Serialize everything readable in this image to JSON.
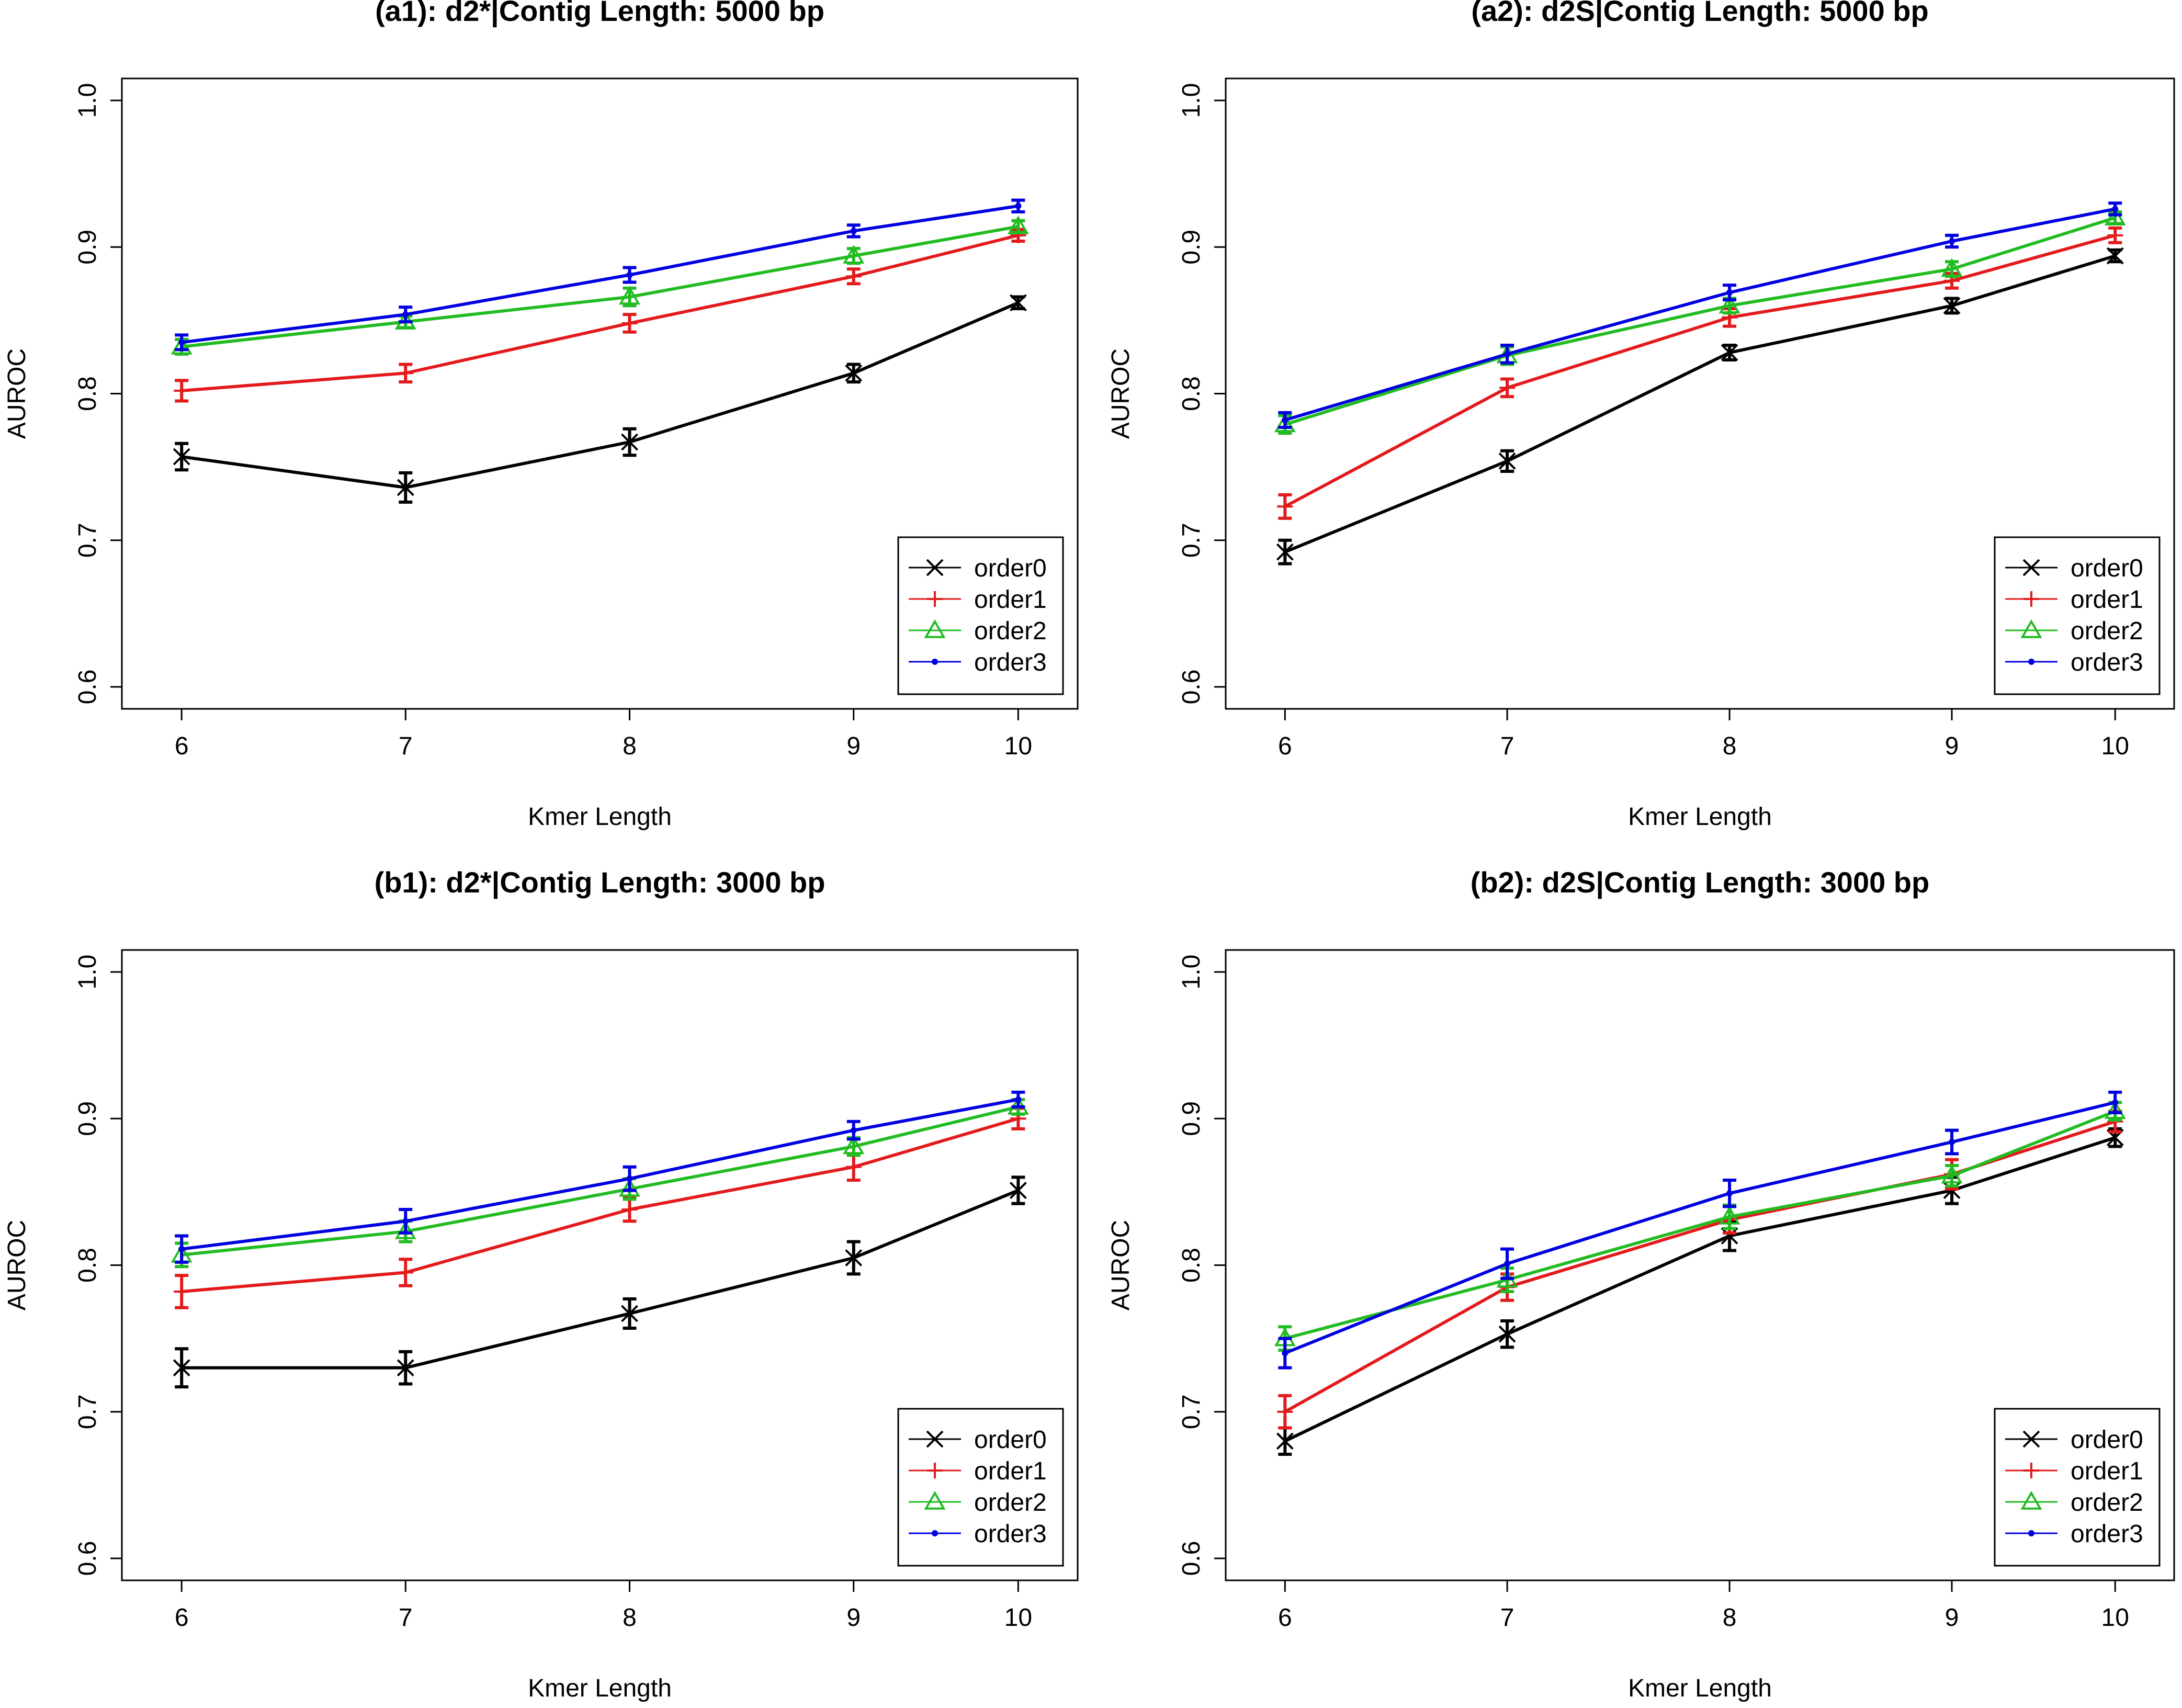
{
  "chart_data": [
    {
      "id": "a1",
      "type": "line",
      "title": "(a1): d2*|Contig Length: 5000 bp",
      "xlabel": "Kmer Length",
      "ylabel": "AUROC",
      "x": [
        6,
        7,
        8,
        9,
        10
      ],
      "xticks": [
        "6",
        "7",
        "8",
        "9",
        "10"
      ],
      "yticks": [
        "0.6",
        "0.7",
        "0.8",
        "0.9",
        "1.0"
      ],
      "ylim": [
        0.585,
        1.015
      ],
      "legend_position": "bottom-right",
      "series": [
        {
          "name": "order0",
          "color": "#000000",
          "marker": "x",
          "values": [
            0.757,
            0.736,
            0.767,
            0.814,
            0.862
          ],
          "errors": [
            0.009,
            0.01,
            0.009,
            0.006,
            0.004
          ]
        },
        {
          "name": "order1",
          "color": "#e31a1c",
          "marker": "plus",
          "values": [
            0.802,
            0.814,
            0.848,
            0.88,
            0.908
          ],
          "errors": [
            0.007,
            0.006,
            0.006,
            0.005,
            0.004
          ]
        },
        {
          "name": "order2",
          "color": "#22bb22",
          "marker": "triangle",
          "values": [
            0.832,
            0.849,
            0.866,
            0.894,
            0.914
          ],
          "errors": [
            0.005,
            0.004,
            0.006,
            0.005,
            0.004
          ]
        },
        {
          "name": "order3",
          "color": "#0000e0",
          "marker": "dot",
          "values": [
            0.835,
            0.854,
            0.881,
            0.911,
            0.928
          ],
          "errors": [
            0.005,
            0.005,
            0.005,
            0.004,
            0.004
          ]
        }
      ]
    },
    {
      "id": "a2",
      "type": "line",
      "title": "(a2): d2S|Contig Length: 5000 bp",
      "xlabel": "Kmer Length",
      "ylabel": "AUROC",
      "x": [
        6,
        7,
        8,
        9,
        10
      ],
      "xticks": [
        "6",
        "7",
        "8",
        "9",
        "10"
      ],
      "yticks": [
        "0.6",
        "0.7",
        "0.8",
        "0.9",
        "1.0"
      ],
      "ylim": [
        0.585,
        1.015
      ],
      "legend_position": "bottom-right",
      "series": [
        {
          "name": "order0",
          "color": "#000000",
          "marker": "x",
          "values": [
            0.692,
            0.754,
            0.828,
            0.86,
            0.894
          ],
          "errors": [
            0.008,
            0.007,
            0.005,
            0.005,
            0.004
          ]
        },
        {
          "name": "order1",
          "color": "#e31a1c",
          "marker": "plus",
          "values": [
            0.723,
            0.804,
            0.852,
            0.877,
            0.908
          ],
          "errors": [
            0.008,
            0.006,
            0.006,
            0.005,
            0.005
          ]
        },
        {
          "name": "order2",
          "color": "#22bb22",
          "marker": "triangle",
          "values": [
            0.779,
            0.826,
            0.86,
            0.885,
            0.92
          ],
          "errors": [
            0.006,
            0.006,
            0.005,
            0.005,
            0.004
          ]
        },
        {
          "name": "order3",
          "color": "#0000e0",
          "marker": "dot",
          "values": [
            0.782,
            0.827,
            0.869,
            0.904,
            0.926
          ],
          "errors": [
            0.005,
            0.006,
            0.005,
            0.004,
            0.004
          ]
        }
      ]
    },
    {
      "id": "b1",
      "type": "line",
      "title": "(b1): d2*|Contig Length: 3000 bp",
      "xlabel": "Kmer Length",
      "ylabel": "AUROC",
      "x": [
        6,
        7,
        8,
        9,
        10
      ],
      "xticks": [
        "6",
        "7",
        "8",
        "9",
        "10"
      ],
      "yticks": [
        "0.6",
        "0.7",
        "0.8",
        "0.9",
        "1.0"
      ],
      "ylim": [
        0.585,
        1.015
      ],
      "legend_position": "bottom-right",
      "series": [
        {
          "name": "order0",
          "color": "#000000",
          "marker": "x",
          "values": [
            0.73,
            0.73,
            0.767,
            0.805,
            0.851
          ],
          "errors": [
            0.013,
            0.011,
            0.01,
            0.011,
            0.009
          ]
        },
        {
          "name": "order1",
          "color": "#e31a1c",
          "marker": "plus",
          "values": [
            0.782,
            0.795,
            0.838,
            0.867,
            0.9
          ],
          "errors": [
            0.011,
            0.009,
            0.008,
            0.009,
            0.007
          ]
        },
        {
          "name": "order2",
          "color": "#22bb22",
          "marker": "triangle",
          "values": [
            0.807,
            0.823,
            0.852,
            0.881,
            0.908
          ],
          "errors": [
            0.008,
            0.007,
            0.007,
            0.006,
            0.005
          ]
        },
        {
          "name": "order3",
          "color": "#0000e0",
          "marker": "dot",
          "values": [
            0.811,
            0.83,
            0.859,
            0.892,
            0.913
          ],
          "errors": [
            0.009,
            0.008,
            0.008,
            0.006,
            0.005
          ]
        }
      ]
    },
    {
      "id": "b2",
      "type": "line",
      "title": "(b2): d2S|Contig Length: 3000 bp",
      "xlabel": "Kmer Length",
      "ylabel": "AUROC",
      "x": [
        6,
        7,
        8,
        9,
        10
      ],
      "xticks": [
        "6",
        "7",
        "8",
        "9",
        "10"
      ],
      "yticks": [
        "0.6",
        "0.7",
        "0.8",
        "0.9",
        "1.0"
      ],
      "ylim": [
        0.585,
        1.015
      ],
      "legend_position": "bottom-right",
      "series": [
        {
          "name": "order0",
          "color": "#000000",
          "marker": "x",
          "values": [
            0.68,
            0.753,
            0.82,
            0.851,
            0.887
          ],
          "errors": [
            0.009,
            0.009,
            0.01,
            0.009,
            0.006
          ]
        },
        {
          "name": "order1",
          "color": "#e31a1c",
          "marker": "plus",
          "values": [
            0.7,
            0.785,
            0.831,
            0.862,
            0.898
          ],
          "errors": [
            0.011,
            0.009,
            0.009,
            0.01,
            0.007
          ]
        },
        {
          "name": "order2",
          "color": "#22bb22",
          "marker": "triangle",
          "values": [
            0.75,
            0.79,
            0.833,
            0.861,
            0.905
          ],
          "errors": [
            0.008,
            0.008,
            0.008,
            0.007,
            0.006
          ]
        },
        {
          "name": "order3",
          "color": "#0000e0",
          "marker": "dot",
          "values": [
            0.74,
            0.801,
            0.849,
            0.884,
            0.911
          ],
          "errors": [
            0.01,
            0.01,
            0.009,
            0.008,
            0.007
          ]
        }
      ]
    }
  ]
}
